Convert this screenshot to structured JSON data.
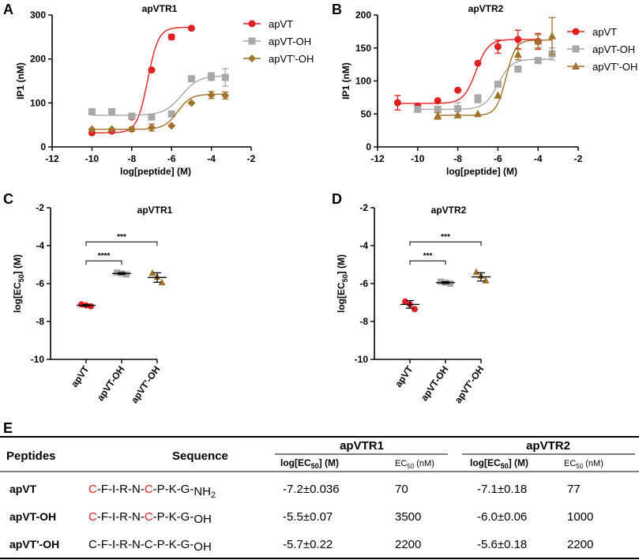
{
  "panels": {
    "A": "A",
    "B": "B",
    "C": "C",
    "D": "D",
    "E": "E"
  },
  "colors": {
    "apVT": "#e02020",
    "apVT_OH": "#a8a8a8",
    "apVTp_OH": "#a0722a",
    "red": "#e02020"
  },
  "legend": [
    "apVT",
    "apVT-OH",
    "apVT'-OH"
  ],
  "chart_data": [
    {
      "id": "A",
      "type": "scatter",
      "title": "apVTR1",
      "xlabel": "log[peptide] (M)",
      "ylabel": "IP1 (nM)",
      "xlim": [
        -12,
        -2
      ],
      "ylim": [
        0,
        300
      ],
      "xticks": [
        -12,
        -10,
        -8,
        -6,
        -4,
        -2
      ],
      "yticks": [
        0,
        100,
        200,
        300
      ],
      "series": [
        {
          "name": "apVT",
          "color": "#e02020",
          "marker": "circle",
          "x": [
            -10,
            -9,
            -8,
            -7,
            -6,
            -5
          ],
          "y": [
            32,
            36,
            68,
            175,
            250,
            270
          ],
          "err": [
            0,
            0,
            0,
            0,
            6,
            0
          ],
          "fit": {
            "bottom": 32,
            "top": 272,
            "ec": -7.2,
            "hill": 1.6
          }
        },
        {
          "name": "apVT-OH",
          "color": "#a8a8a8",
          "marker": "square",
          "x": [
            -10,
            -9,
            -8,
            -7,
            -6,
            -5,
            -4,
            -3.3
          ],
          "y": [
            80,
            80,
            70,
            68,
            75,
            155,
            160,
            158
          ],
          "err": [
            0,
            0,
            0,
            0,
            0,
            0,
            9,
            20
          ],
          "fit": {
            "bottom": 72,
            "top": 162,
            "ec": -5.5,
            "hill": 1.0
          }
        },
        {
          "name": "apVT'-OH",
          "color": "#a0722a",
          "marker": "diamond",
          "x": [
            -10,
            -9,
            -8,
            -7,
            -6,
            -5,
            -4,
            -3.3
          ],
          "y": [
            40,
            40,
            40,
            44,
            48,
            100,
            118,
            117
          ],
          "err": [
            0,
            0,
            5,
            8,
            0,
            0,
            8,
            8
          ],
          "fit": {
            "bottom": 40,
            "top": 120,
            "ec": -5.7,
            "hill": 1.3
          }
        }
      ]
    },
    {
      "id": "B",
      "type": "scatter",
      "title": "apVTR2",
      "xlabel": "log[peptide] (M)",
      "ylabel": "IP1 (nM)",
      "xlim": [
        -12,
        -2
      ],
      "ylim": [
        0,
        200
      ],
      "xticks": [
        -12,
        -10,
        -8,
        -6,
        -4,
        -2
      ],
      "yticks": [
        0,
        50,
        100,
        150,
        200
      ],
      "series": [
        {
          "name": "apVT",
          "color": "#e02020",
          "marker": "circle",
          "x": [
            -11,
            -10,
            -9,
            -8,
            -7,
            -6,
            -5,
            -4
          ],
          "y": [
            67,
            62,
            70,
            86,
            127,
            152,
            163,
            160
          ],
          "err": [
            11,
            4,
            0,
            0,
            0,
            10,
            14,
            12
          ],
          "fit": {
            "bottom": 66,
            "top": 163,
            "ec": -7.1,
            "hill": 1.4
          }
        },
        {
          "name": "apVT-OH",
          "color": "#a8a8a8",
          "marker": "square",
          "x": [
            -10,
            -9,
            -8,
            -7,
            -6,
            -5,
            -4,
            -3.3
          ],
          "y": [
            57,
            57,
            58,
            73,
            95,
            118,
            131,
            141
          ],
          "err": [
            0,
            4,
            9,
            6,
            0,
            0,
            0,
            9
          ],
          "fit": {
            "bottom": 57,
            "top": 133,
            "ec": -6.0,
            "hill": 1.3
          }
        },
        {
          "name": "apVT'-OH",
          "color": "#a0722a",
          "marker": "triangle",
          "x": [
            -9,
            -8,
            -7,
            -6,
            -5,
            -4,
            -3.3
          ],
          "y": [
            47,
            48,
            50,
            78,
            140,
            160,
            168
          ],
          "err": [
            5,
            0,
            0,
            0,
            8,
            10,
            28
          ],
          "fit": {
            "bottom": 48,
            "top": 162,
            "ec": -5.6,
            "hill": 1.8
          }
        }
      ]
    },
    {
      "id": "C",
      "type": "scatter",
      "title": "apVTR1",
      "ylabel_main": "log[EC",
      "ylabel_sub": "50",
      "ylabel_end": "] (M)",
      "ylim": [
        -10,
        -2
      ],
      "yticks": [
        -10,
        -8,
        -6,
        -4,
        -2
      ],
      "categories": [
        "apVT",
        "apVT-OH",
        "apVT'-OH"
      ],
      "points": [
        [
          -7.1,
          -7.15,
          -7.2
        ],
        [
          -5.42,
          -5.47,
          -5.52
        ],
        [
          -5.45,
          -5.65,
          -5.95
        ]
      ],
      "means": [
        -7.15,
        -5.47,
        -5.68
      ],
      "sd": [
        0.04,
        0.05,
        0.25
      ],
      "markers": [
        "circle",
        "square",
        "triangle"
      ],
      "sig": [
        {
          "from": 0,
          "to": 1,
          "label": "****",
          "y": -4.8
        },
        {
          "from": 0,
          "to": 2,
          "label": "***",
          "y": -3.8
        }
      ]
    },
    {
      "id": "D",
      "type": "scatter",
      "title": "apVTR2",
      "ylabel_main": "log[EC",
      "ylabel_sub": "50",
      "ylabel_end": "] (M)",
      "ylim": [
        -10,
        -2
      ],
      "yticks": [
        -10,
        -8,
        -6,
        -4,
        -2
      ],
      "categories": [
        "apVT",
        "apVT-OH",
        "apVT'-OH"
      ],
      "points": [
        [
          -6.95,
          -7.1,
          -7.35
        ],
        [
          -5.9,
          -5.95,
          -6.0
        ],
        [
          -5.4,
          -5.6,
          -5.85
        ]
      ],
      "means": [
        -7.1,
        -5.95,
        -5.65
      ],
      "sd": [
        0.2,
        0.05,
        0.22
      ],
      "markers": [
        "circle",
        "square",
        "triangle"
      ],
      "sig": [
        {
          "from": 0,
          "to": 1,
          "label": "***",
          "y": -4.8
        },
        {
          "from": 0,
          "to": 2,
          "label": "***",
          "y": -3.8
        }
      ]
    }
  ],
  "table": {
    "col_peptides": "Peptides",
    "col_sequence": "Sequence",
    "group1": "apVTR1",
    "group2": "apVTR2",
    "sub_logec_main": "log[EC",
    "sub_logec_sub": "50",
    "sub_logec_end": "] (M)",
    "sub_ec_main": "EC",
    "sub_ec_sub": "50",
    "sub_ec_end": " (nM)",
    "rows": [
      {
        "name": "apVT",
        "seq": [
          {
            "t": "C",
            "red": true
          },
          {
            "t": "-F-I-R-N-"
          },
          {
            "t": "C",
            "red": true
          },
          {
            "t": "-P-K-G-"
          }
        ],
        "seq_end_main": "NH",
        "seq_end_sub": "2",
        "r1_log": "-7.2±0.036",
        "r1_ec": "70",
        "r2_log": "-7.1±0.18",
        "r2_ec": "77"
      },
      {
        "name": "apVT-OH",
        "seq": [
          {
            "t": "C",
            "red": true
          },
          {
            "t": "-F-I-R-N-"
          },
          {
            "t": "C",
            "red": true
          },
          {
            "t": "-P-K-G-"
          }
        ],
        "seq_end_main": "OH",
        "seq_end_sub": "",
        "r1_log": "-5.5±0.07",
        "r1_ec": "3500",
        "r2_log": "-6.0±0.06",
        "r2_ec": "1000"
      },
      {
        "name": "apVT'-OH",
        "seq": [
          {
            "t": "C-F-I-R-N-C-P-K-G-"
          }
        ],
        "seq_end_main": "OH",
        "seq_end_sub": "",
        "r1_log": "-5.7±0.22",
        "r1_ec": "2200",
        "r2_log": "-5.6±0.18",
        "r2_ec": "2200"
      }
    ]
  }
}
